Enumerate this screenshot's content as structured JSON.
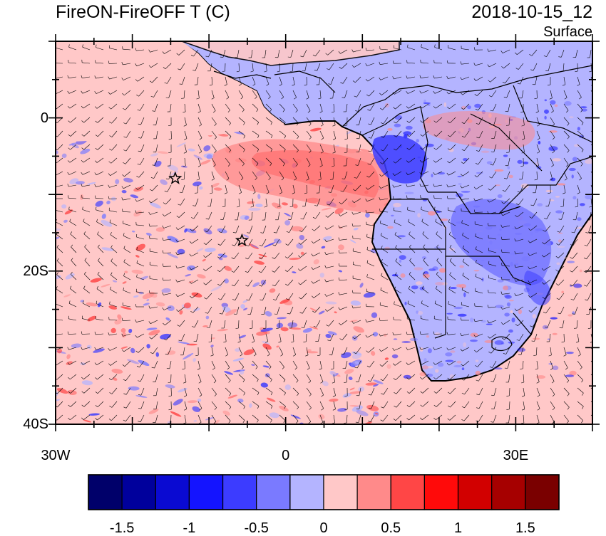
{
  "title": "FireON-FireOFF T (C)",
  "datetime": "2018-10-15_12",
  "level": "Surface",
  "map": {
    "lon_range": [
      -30,
      40
    ],
    "lat_range": [
      -40,
      10
    ],
    "lat_labels": [
      {
        "lat": 0,
        "text": "0"
      },
      {
        "lat": -20,
        "text": "20S"
      },
      {
        "lat": -40,
        "text": "40S"
      }
    ],
    "lon_labels": [
      {
        "lon": -30,
        "text": "30W"
      },
      {
        "lon": 0,
        "text": "0"
      },
      {
        "lon": 30,
        "text": "30E"
      }
    ],
    "markers": [
      {
        "lon": -14.4,
        "lat": -7.9,
        "symbol": "star"
      },
      {
        "lon": -5.7,
        "lat": -16.0,
        "symbol": "star"
      }
    ]
  },
  "colorbar": {
    "colors": [
      "#00006a",
      "#00009c",
      "#0a0ad2",
      "#1414ff",
      "#3c3cff",
      "#7a7aff",
      "#b4b4ff",
      "#ffc8c8",
      "#ff8a8a",
      "#ff4646",
      "#ff0a0a",
      "#d20000",
      "#a60000",
      "#7a0000"
    ],
    "labels": [
      "-1.5",
      "-1",
      "-0.5",
      "0",
      "0.5",
      "1",
      "1.5"
    ],
    "label_values": [
      -1.5,
      -1,
      -0.5,
      0,
      0.5,
      1,
      1.5
    ],
    "bounds": [
      -1.75,
      1.75
    ]
  },
  "colors": {
    "ocean_base": "#ffc8c8",
    "land_base": "#b4b4ff",
    "warm_plume": "#ff8a8a",
    "cool_land": "#7a7aff",
    "strong_cool": "#3c3cff"
  }
}
